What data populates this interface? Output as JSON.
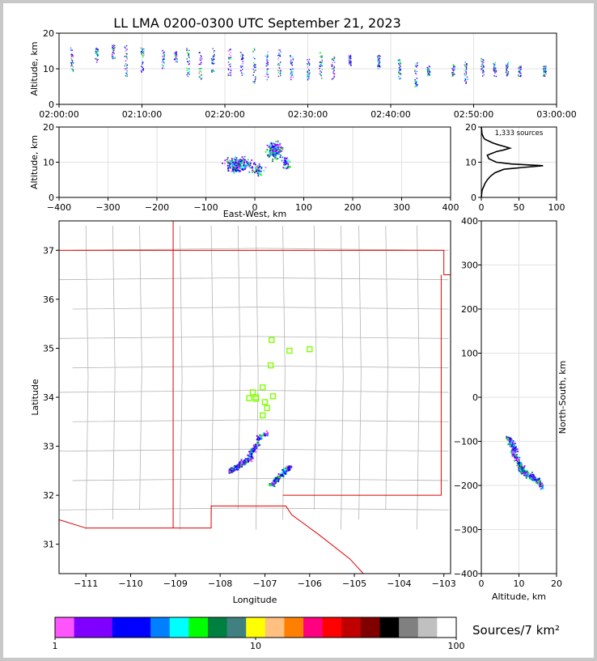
{
  "title": "LL LMA 0200-0300 UTC September 21, 2023",
  "colorbar": {
    "label": "Sources/7 km²",
    "tick_labels": [
      "1",
      "10",
      "100"
    ],
    "colors": [
      "#ff55ff",
      "#8000ff",
      "#8000ff",
      "#0000ff",
      "#0000ff",
      "#0080ff",
      "#00ffff",
      "#00ff00",
      "#008040",
      "#408080",
      "#ffff00",
      "#ffc080",
      "#ff8000",
      "#ff0080",
      "#ff0000",
      "#c00000",
      "#800000",
      "#000000",
      "#808080",
      "#c0c0c0",
      "#ffffff"
    ]
  },
  "chart_data": [
    {
      "id": "time-height",
      "type": "scatter",
      "ylabel": "Altitude, km",
      "xlabel": "",
      "xlim": [
        "02:00:00",
        "03:00:00"
      ],
      "ylim": [
        0,
        20
      ],
      "xticks": [
        "02:00:00",
        "02:10:00",
        "02:20:00",
        "02:30:00",
        "02:40:00",
        "02:50:00",
        "03:00:00"
      ],
      "yticks": [
        "0",
        "10",
        "20"
      ],
      "grid": true,
      "bursts": [
        {
          "t_min": 1.5,
          "lo": 9,
          "hi": 16
        },
        {
          "t_min": 4.5,
          "lo": 12,
          "hi": 16
        },
        {
          "t_min": 6.5,
          "lo": 13,
          "hi": 17
        },
        {
          "t_min": 8,
          "lo": 8,
          "hi": 17
        },
        {
          "t_min": 10,
          "lo": 9,
          "hi": 16
        },
        {
          "t_min": 12.5,
          "lo": 10,
          "hi": 16
        },
        {
          "t_min": 14,
          "lo": 12,
          "hi": 15
        },
        {
          "t_min": 15.5,
          "lo": 8,
          "hi": 16
        },
        {
          "t_min": 17,
          "lo": 7,
          "hi": 15
        },
        {
          "t_min": 18.5,
          "lo": 9,
          "hi": 16
        },
        {
          "t_min": 20.5,
          "lo": 8,
          "hi": 16
        },
        {
          "t_min": 22,
          "lo": 8,
          "hi": 15
        },
        {
          "t_min": 23.5,
          "lo": 6,
          "hi": 16
        },
        {
          "t_min": 25,
          "lo": 7,
          "hi": 15
        },
        {
          "t_min": 26.5,
          "lo": 8,
          "hi": 16
        },
        {
          "t_min": 28,
          "lo": 7,
          "hi": 14
        },
        {
          "t_min": 30,
          "lo": 7,
          "hi": 13
        },
        {
          "t_min": 31.5,
          "lo": 7,
          "hi": 15
        },
        {
          "t_min": 33,
          "lo": 7,
          "hi": 14
        },
        {
          "t_min": 35,
          "lo": 11,
          "hi": 14
        },
        {
          "t_min": 38.5,
          "lo": 10,
          "hi": 14
        },
        {
          "t_min": 41,
          "lo": 7,
          "hi": 13
        },
        {
          "t_min": 43,
          "lo": 5,
          "hi": 12
        },
        {
          "t_min": 44.5,
          "lo": 8,
          "hi": 11
        },
        {
          "t_min": 47.5,
          "lo": 8,
          "hi": 12
        },
        {
          "t_min": 49,
          "lo": 6,
          "hi": 12
        },
        {
          "t_min": 51,
          "lo": 8,
          "hi": 13
        },
        {
          "t_min": 52.5,
          "lo": 8,
          "hi": 12
        },
        {
          "t_min": 54,
          "lo": 8,
          "hi": 12
        },
        {
          "t_min": 55.5,
          "lo": 8,
          "hi": 11
        },
        {
          "t_min": 58.5,
          "lo": 8,
          "hi": 11
        }
      ]
    },
    {
      "id": "east-west-altitude",
      "type": "scatter",
      "xlabel": "East-West, km",
      "ylabel": "Altitude, km",
      "xlim": [
        -400,
        400
      ],
      "ylim": [
        0,
        20
      ],
      "xticks": [
        "−400",
        "−300",
        "−200",
        "−100",
        "0",
        "100",
        "200",
        "300",
        "400"
      ],
      "yticks": [
        "0",
        "10",
        "20"
      ],
      "grid": true,
      "clusters": [
        {
          "cx": -35,
          "cy": 9.5,
          "sx": 22,
          "sy": 1.6,
          "n": 220
        },
        {
          "cx": 5,
          "cy": 8.0,
          "sx": 10,
          "sy": 1.2,
          "n": 50
        },
        {
          "cx": 40,
          "cy": 13.5,
          "sx": 12,
          "sy": 2.0,
          "n": 170
        },
        {
          "cx": 62,
          "cy": 10.0,
          "sx": 8,
          "sy": 1.5,
          "n": 40
        }
      ]
    },
    {
      "id": "altitude-histogram",
      "type": "line",
      "xlim": [
        0,
        100
      ],
      "ylim": [
        0,
        20
      ],
      "xticks": [
        "0",
        "50",
        "100"
      ],
      "yticks": [
        "0",
        "10",
        "20"
      ],
      "annotation": "1,333 sources",
      "x": [
        0,
        1,
        3,
        5,
        8,
        12,
        18,
        30,
        55,
        82,
        40,
        20,
        10,
        8,
        14,
        20,
        30,
        38,
        30,
        22,
        15,
        10,
        5,
        3,
        1,
        0
      ],
      "y": [
        0,
        2,
        3,
        4,
        5,
        6,
        7,
        8,
        8.5,
        9,
        9.5,
        10,
        11,
        12,
        12.5,
        13,
        13.5,
        14,
        14.5,
        15,
        15.5,
        16,
        16.5,
        17,
        18,
        20
      ]
    },
    {
      "id": "plan-view",
      "type": "scatter",
      "xlabel": "Longitude",
      "ylabel": "Latitude",
      "xlim": [
        -111.6,
        -102.85
      ],
      "ylim": [
        30.4,
        37.6
      ],
      "xticks": [
        "−111",
        "−110",
        "−109",
        "−108",
        "−107",
        "−106",
        "−105",
        "−104",
        "−103"
      ],
      "yticks": [
        "31",
        "32",
        "33",
        "34",
        "35",
        "36",
        "37"
      ],
      "grid": true,
      "stations": [
        {
          "lon": -106.85,
          "lat": 35.17
        },
        {
          "lon": -106.45,
          "lat": 34.95
        },
        {
          "lon": -106.0,
          "lat": 34.98
        },
        {
          "lon": -106.87,
          "lat": 34.65
        },
        {
          "lon": -107.27,
          "lat": 34.1
        },
        {
          "lon": -107.05,
          "lat": 34.2
        },
        {
          "lon": -107.2,
          "lat": 33.97
        },
        {
          "lon": -107.35,
          "lat": 33.98
        },
        {
          "lon": -107.0,
          "lat": 33.9
        },
        {
          "lon": -106.95,
          "lat": 33.78
        },
        {
          "lon": -106.82,
          "lat": 34.02
        },
        {
          "lon": -107.05,
          "lat": 33.63
        },
        {
          "lon": -107.2,
          "lat": 34.0
        }
      ],
      "clusters": [
        {
          "x0": -107.8,
          "y0": 32.5,
          "x1": -107.3,
          "y1": 32.8,
          "n": 200
        },
        {
          "x0": -107.35,
          "y0": 32.85,
          "x1": -107.15,
          "y1": 33.1,
          "n": 70
        },
        {
          "x0": -107.2,
          "y0": 33.15,
          "x1": -106.95,
          "y1": 33.3,
          "n": 40
        },
        {
          "x0": -106.9,
          "y0": 32.2,
          "x1": -106.45,
          "y1": 32.6,
          "n": 170
        }
      ]
    },
    {
      "id": "altitude-north-south",
      "type": "scatter",
      "xlabel": "Altitude, km",
      "ylabel": "North-South, km",
      "xlim": [
        0,
        20
      ],
      "ylim": [
        -400,
        400
      ],
      "xticks": [
        "0",
        "10",
        "20"
      ],
      "yticks": [
        "−400",
        "−300",
        "−200",
        "−100",
        "0",
        "100",
        "200",
        "300",
        "400"
      ],
      "grid": true,
      "clusters": [
        {
          "x0": 7,
          "y0": -90,
          "x1": 9,
          "y1": -120,
          "n": 120
        },
        {
          "x0": 8,
          "y0": -120,
          "x1": 11,
          "y1": -165,
          "n": 130
        },
        {
          "x0": 10,
          "y0": -160,
          "x1": 14,
          "y1": -185,
          "n": 90
        },
        {
          "x0": 13,
          "y0": -175,
          "x1": 16,
          "y1": -200,
          "n": 90
        }
      ]
    }
  ]
}
